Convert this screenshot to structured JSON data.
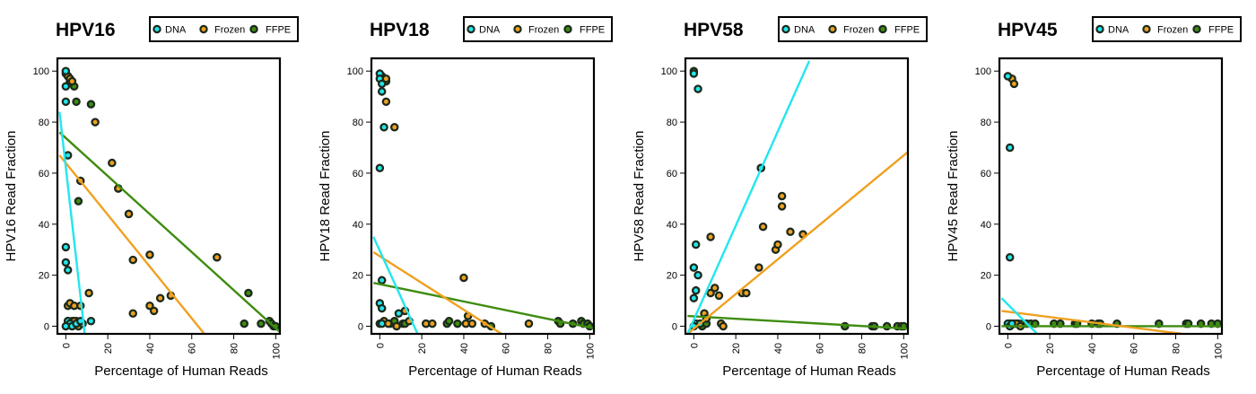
{
  "legend_labels": [
    "DNA",
    "Frozen",
    "FFPE"
  ],
  "colors": {
    "DNA": "#22e6ee",
    "Frozen": "#f0a020",
    "FFPE": "#3e8c10",
    "point_outline": "#1c2a1c"
  },
  "chart_data": [
    {
      "type": "scatter",
      "title": "HPV16",
      "xlabel": "Percentage of Human Reads",
      "ylabel": "HPV16 Read Fraction",
      "xlim": [
        -4,
        102
      ],
      "ylim": [
        -3,
        105
      ],
      "xticks": [
        0,
        20,
        40,
        60,
        80,
        100
      ],
      "yticks": [
        0,
        20,
        40,
        60,
        80,
        100
      ],
      "legend": "top",
      "series": [
        {
          "name": "DNA",
          "points": [
            [
              0,
              100
            ],
            [
              0,
              94
            ],
            [
              0,
              88
            ],
            [
              1,
              67
            ],
            [
              0,
              31
            ],
            [
              0,
              25
            ],
            [
              1,
              22
            ],
            [
              1,
              2
            ],
            [
              2,
              1
            ],
            [
              3,
              0
            ],
            [
              5,
              1
            ],
            [
              7,
              2
            ],
            [
              12,
              2
            ],
            [
              0,
              0
            ]
          ],
          "fit": [
            [
              -3,
              84
            ],
            [
              9,
              -3
            ]
          ]
        },
        {
          "name": "Frozen",
          "points": [
            [
              1,
              98
            ],
            [
              2,
              97
            ],
            [
              3,
              96
            ],
            [
              7,
              57
            ],
            [
              14,
              80
            ],
            [
              22,
              64
            ],
            [
              25,
              54
            ],
            [
              30,
              44
            ],
            [
              32,
              26
            ],
            [
              40,
              28
            ],
            [
              42,
              6
            ],
            [
              45,
              11
            ],
            [
              50,
              12
            ],
            [
              72,
              27
            ],
            [
              1,
              8
            ],
            [
              2,
              9
            ],
            [
              4,
              8
            ],
            [
              7,
              8
            ],
            [
              11,
              13
            ],
            [
              32,
              5
            ],
            [
              40,
              8
            ],
            [
              4,
              2
            ],
            [
              6,
              0
            ],
            [
              8,
              1
            ]
          ],
          "fit": [
            [
              -3,
              67
            ],
            [
              66,
              -3
            ]
          ]
        },
        {
          "name": "FFPE",
          "points": [
            [
              0,
              99
            ],
            [
              1,
              98
            ],
            [
              2,
              97
            ],
            [
              3,
              96
            ],
            [
              4,
              94
            ],
            [
              2,
              96
            ],
            [
              5,
              88
            ],
            [
              12,
              87
            ],
            [
              6,
              49
            ],
            [
              25,
              54
            ],
            [
              30,
              44
            ],
            [
              72,
              27
            ],
            [
              87,
              13
            ],
            [
              85,
              1
            ],
            [
              93,
              1
            ],
            [
              97,
              2
            ],
            [
              98,
              1
            ],
            [
              99,
              0
            ],
            [
              100,
              0
            ],
            [
              1,
              2
            ],
            [
              3,
              2
            ],
            [
              5,
              2
            ]
          ],
          "fit": [
            [
              -3,
              76
            ],
            [
              103,
              -3
            ]
          ]
        }
      ]
    },
    {
      "type": "scatter",
      "title": "HPV18",
      "xlabel": "Percentage of Human Reads",
      "ylabel": "HPV18 Read Fraction",
      "xlim": [
        -4,
        102
      ],
      "ylim": [
        -3,
        105
      ],
      "xticks": [
        0,
        20,
        40,
        60,
        80,
        100
      ],
      "yticks": [
        0,
        20,
        40,
        60,
        80,
        100
      ],
      "legend": "top",
      "series": [
        {
          "name": "DNA",
          "points": [
            [
              0,
              99
            ],
            [
              0,
              97
            ],
            [
              1,
              95
            ],
            [
              1,
              92
            ],
            [
              2,
              78
            ],
            [
              0,
              62
            ],
            [
              1,
              18
            ],
            [
              0,
              9
            ],
            [
              1,
              7
            ],
            [
              9,
              5
            ],
            [
              0,
              1
            ],
            [
              1,
              1
            ]
          ],
          "fit": [
            [
              -3,
              35
            ],
            [
              18,
              -3
            ]
          ]
        },
        {
          "name": "Frozen",
          "points": [
            [
              2,
              97
            ],
            [
              3,
              97
            ],
            [
              3,
              88
            ],
            [
              7,
              78
            ],
            [
              40,
              19
            ],
            [
              42,
              4
            ],
            [
              41,
              1
            ],
            [
              44,
              1
            ],
            [
              50,
              1
            ],
            [
              71,
              1
            ],
            [
              2,
              2
            ],
            [
              4,
              1
            ],
            [
              8,
              0
            ],
            [
              12,
              6
            ],
            [
              14,
              2
            ],
            [
              22,
              1
            ],
            [
              25,
              1
            ]
          ],
          "fit": [
            [
              -3,
              29
            ],
            [
              58,
              -3
            ]
          ]
        },
        {
          "name": "FFPE",
          "points": [
            [
              1,
              98
            ],
            [
              2,
              97
            ],
            [
              3,
              96
            ],
            [
              5,
              1
            ],
            [
              7,
              2
            ],
            [
              11,
              1
            ],
            [
              12,
              1
            ],
            [
              22,
              1
            ],
            [
              32,
              1
            ],
            [
              33,
              2
            ],
            [
              37,
              1
            ],
            [
              53,
              0
            ],
            [
              85,
              2
            ],
            [
              86,
              1
            ],
            [
              92,
              1
            ],
            [
              96,
              2
            ],
            [
              97,
              1
            ],
            [
              99,
              1
            ],
            [
              100,
              0
            ]
          ],
          "fit": [
            [
              -3,
              17
            ],
            [
              103,
              -1
            ]
          ]
        }
      ]
    },
    {
      "type": "scatter",
      "title": "HPV58",
      "xlabel": "Percentage of Human Reads",
      "ylabel": "HPV58 Read Fraction",
      "xlim": [
        -4,
        102
      ],
      "ylim": [
        -3,
        105
      ],
      "xticks": [
        0,
        20,
        40,
        60,
        80,
        100
      ],
      "yticks": [
        0,
        20,
        40,
        60,
        80,
        100
      ],
      "legend": "top",
      "series": [
        {
          "name": "DNA",
          "points": [
            [
              0,
              99
            ],
            [
              2,
              93
            ],
            [
              1,
              32
            ],
            [
              0,
              23
            ],
            [
              2,
              20
            ],
            [
              1,
              14
            ],
            [
              0,
              11
            ],
            [
              1,
              1
            ],
            [
              3,
              1
            ],
            [
              32,
              62
            ],
            [
              0,
              0
            ]
          ],
          "fit": [
            [
              -3,
              -3
            ],
            [
              55,
              104
            ]
          ]
        },
        {
          "name": "Frozen",
          "points": [
            [
              8,
              35
            ],
            [
              32,
              62
            ],
            [
              33,
              39
            ],
            [
              39,
              30
            ],
            [
              40,
              32
            ],
            [
              42,
              51
            ],
            [
              42,
              47
            ],
            [
              46,
              37
            ],
            [
              52,
              36
            ],
            [
              31,
              23
            ],
            [
              23,
              13
            ],
            [
              25,
              13
            ],
            [
              8,
              13
            ],
            [
              10,
              15
            ],
            [
              12,
              12
            ],
            [
              5,
              5
            ],
            [
              6,
              3
            ],
            [
              13,
              1
            ],
            [
              14,
              0
            ]
          ],
          "fit": [
            [
              -3,
              -3
            ],
            [
              103,
              69
            ]
          ]
        },
        {
          "name": "FFPE",
          "points": [
            [
              0,
              100
            ],
            [
              3,
              1
            ],
            [
              4,
              0
            ],
            [
              6,
              1
            ],
            [
              72,
              0
            ],
            [
              85,
              0
            ],
            [
              86,
              0
            ],
            [
              92,
              0
            ],
            [
              97,
              0
            ],
            [
              99,
              0
            ],
            [
              100,
              0
            ]
          ],
          "fit": [
            [
              -3,
              4
            ],
            [
              103,
              -1
            ]
          ]
        }
      ]
    },
    {
      "type": "scatter",
      "title": "HPV45",
      "xlabel": "Percentage of Human Reads",
      "ylabel": "HPV45 Read Fraction",
      "xlim": [
        -4,
        102
      ],
      "ylim": [
        -3,
        105
      ],
      "xticks": [
        0,
        20,
        40,
        60,
        80,
        100
      ],
      "yticks": [
        0,
        20,
        40,
        60,
        80,
        100
      ],
      "legend": "top",
      "series": [
        {
          "name": "DNA",
          "points": [
            [
              0,
              98
            ],
            [
              1,
              70
            ],
            [
              1,
              27
            ],
            [
              0,
              1
            ],
            [
              1,
              0
            ],
            [
              2,
              1
            ]
          ],
          "fit": [
            [
              -3,
              11
            ],
            [
              14,
              -3
            ]
          ]
        },
        {
          "name": "Frozen",
          "points": [
            [
              2,
              97
            ],
            [
              3,
              95
            ],
            [
              4,
              1
            ],
            [
              6,
              0
            ]
          ],
          "fit": [
            [
              -3,
              6
            ],
            [
              83,
              -3
            ]
          ]
        },
        {
          "name": "FFPE",
          "points": [
            [
              1,
              1
            ],
            [
              2,
              1
            ],
            [
              3,
              1
            ],
            [
              5,
              1
            ],
            [
              7,
              1
            ],
            [
              9,
              1
            ],
            [
              11,
              1
            ],
            [
              13,
              1
            ],
            [
              22,
              1
            ],
            [
              25,
              1
            ],
            [
              32,
              1
            ],
            [
              33,
              1
            ],
            [
              40,
              1
            ],
            [
              43,
              1
            ],
            [
              44,
              1
            ],
            [
              52,
              1
            ],
            [
              72,
              1
            ],
            [
              85,
              1
            ],
            [
              86,
              1
            ],
            [
              92,
              1
            ],
            [
              97,
              1
            ],
            [
              100,
              1
            ]
          ],
          "fit": [
            [
              -3,
              0
            ],
            [
              103,
              0
            ]
          ]
        }
      ]
    }
  ]
}
